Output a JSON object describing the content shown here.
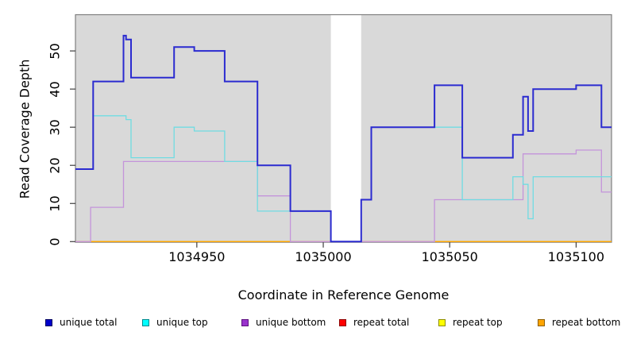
{
  "axes": {
    "x": {
      "label": "Coordinate in Reference Genome",
      "tick_values": [
        1034950,
        1035000,
        1035050,
        1035100
      ],
      "domain": [
        1034902,
        1035114
      ]
    },
    "y": {
      "label": "Read Coverage Depth",
      "tick_values": [
        0,
        10,
        20,
        30,
        40,
        50
      ],
      "domain": [
        0,
        59.5
      ]
    }
  },
  "legend": {
    "items": [
      {
        "label": "unique total",
        "fill": "#0000CC",
        "border": "#00005E"
      },
      {
        "label": "unique top",
        "fill": "#00FFFF",
        "border": "#00898D"
      },
      {
        "label": "unique bottom",
        "fill": "#9932CC",
        "border": "#5E1080"
      },
      {
        "label": "repeat total",
        "fill": "#FF0000",
        "border": "#8D0000"
      },
      {
        "label": "repeat top",
        "fill": "#FFFF00",
        "border": "#8D8D00"
      },
      {
        "label": "repeat bottom",
        "fill": "#FFA500",
        "border": "#8D5E00"
      }
    ]
  },
  "chart_data": {
    "type": "line",
    "subtype": "step-coverage",
    "x_domain": [
      1034902,
      1035114
    ],
    "y_domain": [
      0,
      59.5
    ],
    "background": "#D9D9D9",
    "border_color": "#7F7F7F",
    "tick_color": "#3F3F3F",
    "gap_region": {
      "from": 1035003,
      "to": 1035015
    },
    "draw_order": [
      3,
      4,
      5,
      2,
      1,
      0
    ],
    "series": [
      {
        "name": "unique total",
        "color": "#2B2BD0",
        "width": 2,
        "points": [
          [
            1034902,
            19
          ],
          [
            1034909,
            42
          ],
          [
            1034921,
            54
          ],
          [
            1034922,
            53
          ],
          [
            1034924,
            43
          ],
          [
            1034941,
            51
          ],
          [
            1034949,
            50
          ],
          [
            1034961,
            42
          ],
          [
            1034974,
            20
          ],
          [
            1034987,
            8
          ],
          [
            1035003,
            0
          ],
          [
            1035015,
            11
          ],
          [
            1035019,
            30
          ],
          [
            1035044,
            41
          ],
          [
            1035055,
            22
          ],
          [
            1035075,
            28
          ],
          [
            1035079,
            38
          ],
          [
            1035081,
            29
          ],
          [
            1035083,
            40
          ],
          [
            1035100,
            41
          ],
          [
            1035110,
            30
          ]
        ]
      },
      {
        "name": "unique top",
        "color": "#70DCE2",
        "width": 1.3,
        "points": [
          [
            1034902,
            19
          ],
          [
            1034909,
            33
          ],
          [
            1034922,
            32
          ],
          [
            1034924,
            22
          ],
          [
            1034941,
            30
          ],
          [
            1034949,
            29
          ],
          [
            1034961,
            21
          ],
          [
            1034974,
            8
          ],
          [
            1035003,
            0
          ],
          [
            1035015,
            11
          ],
          [
            1035019,
            30
          ],
          [
            1035055,
            11
          ],
          [
            1035075,
            17
          ],
          [
            1035079,
            15
          ],
          [
            1035081,
            6
          ],
          [
            1035083,
            17
          ]
        ]
      },
      {
        "name": "unique bottom",
        "color": "#C494DA",
        "width": 1.3,
        "points": [
          [
            1034902,
            0
          ],
          [
            1034908,
            9
          ],
          [
            1034921,
            21
          ],
          [
            1034974,
            12
          ],
          [
            1034987,
            0
          ],
          [
            1035044,
            11
          ],
          [
            1035079,
            23
          ],
          [
            1035100,
            24
          ],
          [
            1035110,
            13
          ]
        ]
      },
      {
        "name": "repeat total",
        "color": "#E00000",
        "width": 1.3,
        "points": [
          [
            1034902,
            0
          ]
        ]
      },
      {
        "name": "repeat top",
        "color": "#FFFF00",
        "width": 1.3,
        "points": [
          [
            1034902,
            0
          ]
        ]
      },
      {
        "name": "repeat bottom",
        "color": "#FFA500",
        "width": 1.3,
        "points": [
          [
            1034902,
            0
          ]
        ]
      }
    ]
  }
}
